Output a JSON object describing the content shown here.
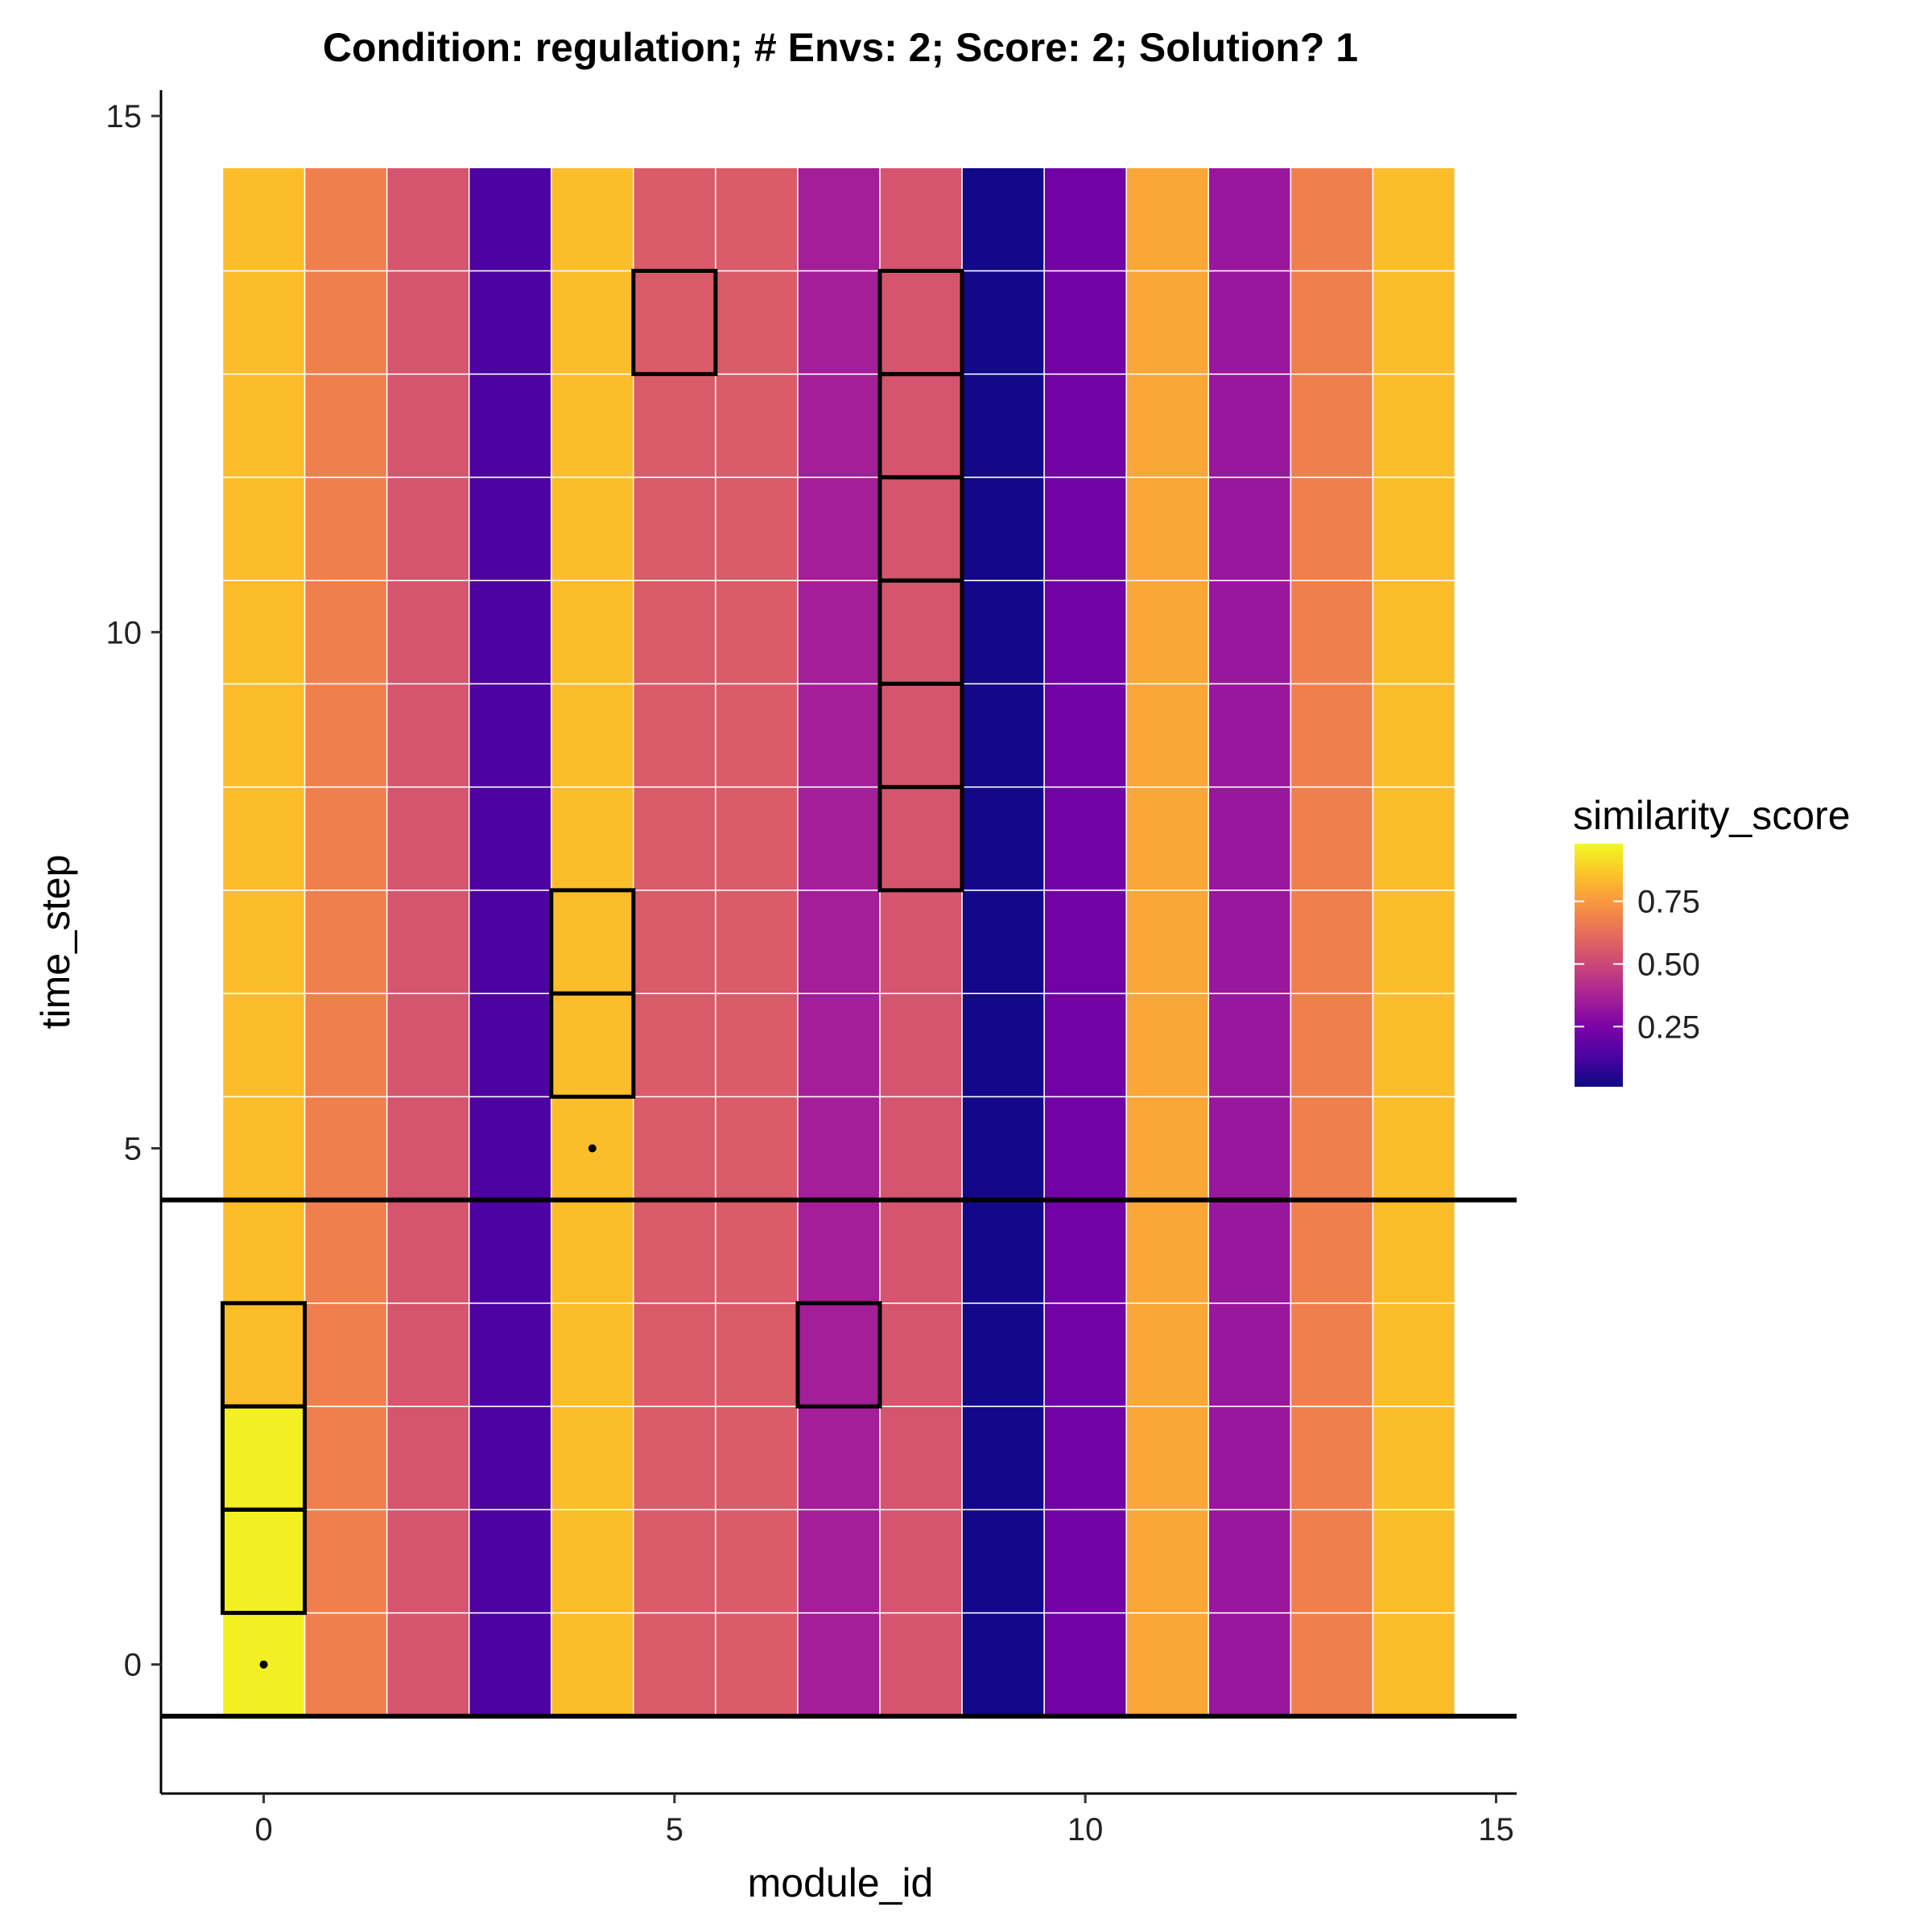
{
  "chart_data": {
    "type": "heatmap",
    "title": "Condition: regulation; # Envs: 2; Score: 2; Solution? 1",
    "xlabel": "module_id",
    "ylabel": "time_step",
    "xlim": [
      -1.25,
      15.25
    ],
    "ylim": [
      -1.25,
      15.25
    ],
    "x_ticks": [
      0,
      5,
      10,
      15
    ],
    "y_ticks": [
      0,
      5,
      10,
      15
    ],
    "x": [
      0,
      1,
      2,
      3,
      4,
      5,
      6,
      7,
      8,
      9,
      10,
      11,
      12,
      13,
      14
    ],
    "y": [
      0,
      1,
      2,
      3,
      4,
      5,
      6,
      7,
      8,
      9,
      10,
      11,
      12,
      13,
      14
    ],
    "column_scores": [
      0.86,
      0.69,
      0.55,
      0.13,
      0.86,
      0.57,
      0.57,
      0.36,
      0.55,
      0.01,
      0.22,
      0.8,
      0.33,
      0.69,
      0.86
    ],
    "cell_overrides": [
      {
        "x": 0,
        "y": 0,
        "value": 0.98
      },
      {
        "x": 0,
        "y": 1,
        "value": 0.98
      },
      {
        "x": 0,
        "y": 2,
        "value": 0.98
      }
    ],
    "highlighted_cells": [
      {
        "x": 0,
        "y": 1
      },
      {
        "x": 0,
        "y": 2
      },
      {
        "x": 0,
        "y": 3
      },
      {
        "x": 7,
        "y": 3
      },
      {
        "x": 4,
        "y": 6
      },
      {
        "x": 4,
        "y": 7
      },
      {
        "x": 8,
        "y": 8
      },
      {
        "x": 8,
        "y": 9
      },
      {
        "x": 8,
        "y": 10
      },
      {
        "x": 8,
        "y": 11
      },
      {
        "x": 8,
        "y": 12
      },
      {
        "x": 8,
        "y": 13
      },
      {
        "x": 5,
        "y": 13
      }
    ],
    "points": [
      {
        "x": 0,
        "y": 0
      },
      {
        "x": 4,
        "y": 5
      }
    ],
    "hlines": [
      -0.5,
      4.5
    ],
    "legend": {
      "title": "similarity_score",
      "ticks": [
        0.25,
        0.5,
        0.75
      ],
      "tick_labels": [
        "0.25",
        "0.50",
        "0.75"
      ],
      "range": [
        0.01,
        0.98
      ],
      "placement": "right"
    },
    "colors": {
      "colormap": "plasma",
      "grid_line": "#ffffff",
      "highlight_outline": "#000000",
      "axis": "#000000"
    }
  }
}
